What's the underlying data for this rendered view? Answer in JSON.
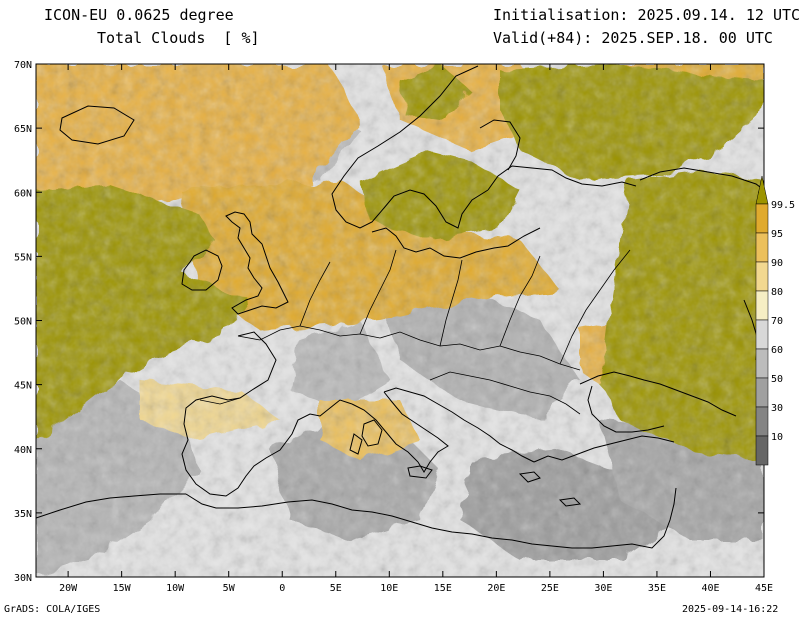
{
  "header": {
    "model": "ICON-EU 0.0625 degree",
    "field": "Total Clouds  [ %]",
    "init": "Initialisation: 2025.09.14. 12 UTC",
    "valid": "Valid(+84): 2025.SEP.18. 00 UTC"
  },
  "map": {
    "projection": "lat-lon",
    "lon_range": [
      -23,
      45
    ],
    "lat_range": [
      30,
      70
    ],
    "lon_ticks": [
      {
        "v": -20,
        "label": "20W"
      },
      {
        "v": -15,
        "label": "15W"
      },
      {
        "v": -10,
        "label": "10W"
      },
      {
        "v": -5,
        "label": "5W"
      },
      {
        "v": 0,
        "label": "0"
      },
      {
        "v": 5,
        "label": "5E"
      },
      {
        "v": 10,
        "label": "10E"
      },
      {
        "v": 15,
        "label": "15E"
      },
      {
        "v": 20,
        "label": "20E"
      },
      {
        "v": 25,
        "label": "25E"
      },
      {
        "v": 30,
        "label": "30E"
      },
      {
        "v": 35,
        "label": "35E"
      },
      {
        "v": 40,
        "label": "40E"
      },
      {
        "v": 45,
        "label": "45E"
      }
    ],
    "lat_ticks": [
      {
        "v": 30,
        "label": "30N"
      },
      {
        "v": 35,
        "label": "35N"
      },
      {
        "v": 40,
        "label": "40N"
      },
      {
        "v": 45,
        "label": "45N"
      },
      {
        "v": 50,
        "label": "50N"
      },
      {
        "v": 55,
        "label": "55N"
      },
      {
        "v": 60,
        "label": "60N"
      },
      {
        "v": 65,
        "label": "65N"
      },
      {
        "v": 70,
        "label": "70N"
      }
    ],
    "colors": {
      "background": "#e4e4e4",
      "overcast": "#9c9400",
      "broken": "#e8b040",
      "scattered": "#a0a0a0",
      "coastline": "#000000"
    }
  },
  "colorbar": {
    "levels": [
      {
        "label": "99.5",
        "color": "#9c9400"
      },
      {
        "label": "95",
        "color": "#e0aa2e"
      },
      {
        "label": "90",
        "color": "#ecc05c"
      },
      {
        "label": "80",
        "color": "#f2d890"
      },
      {
        "label": "70",
        "color": "#f6eec4"
      },
      {
        "label": "60",
        "color": "#d8d8d8"
      },
      {
        "label": "50",
        "color": "#bcbcbc"
      },
      {
        "label": "30",
        "color": "#a0a0a0"
      },
      {
        "label": "10",
        "color": "#848484"
      }
    ],
    "bottom_color": "#666666"
  },
  "footer": {
    "left": "GrADS: COLA/IGES",
    "right": "2025-09-14-16:22"
  }
}
